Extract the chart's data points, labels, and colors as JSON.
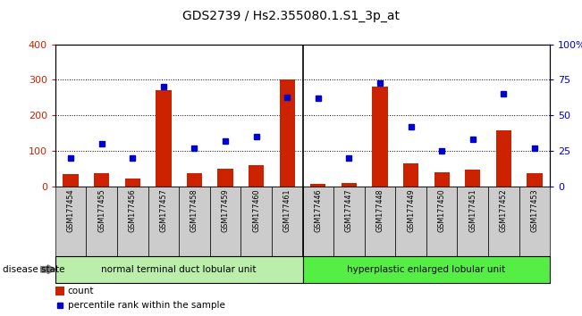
{
  "title": "GDS2739 / Hs2.355080.1.S1_3p_at",
  "samples": [
    "GSM177454",
    "GSM177455",
    "GSM177456",
    "GSM177457",
    "GSM177458",
    "GSM177459",
    "GSM177460",
    "GSM177461",
    "GSM177446",
    "GSM177447",
    "GSM177448",
    "GSM177449",
    "GSM177450",
    "GSM177451",
    "GSM177452",
    "GSM177453"
  ],
  "counts": [
    35,
    38,
    22,
    270,
    38,
    50,
    60,
    300,
    8,
    10,
    280,
    65,
    40,
    48,
    158,
    38
  ],
  "percentiles": [
    20,
    30,
    20,
    70,
    27,
    32,
    35,
    63,
    62,
    20,
    73,
    42,
    25,
    33,
    65,
    27
  ],
  "group1_label": "normal terminal duct lobular unit",
  "group2_label": "hyperplastic enlarged lobular unit",
  "group1_count": 8,
  "group2_count": 8,
  "bar_color": "#cc2200",
  "dot_color": "#0000cc",
  "group1_bg": "#bbeeaa",
  "group2_bg": "#55ee44",
  "tick_bg": "#cccccc",
  "ylim_left": [
    0,
    400
  ],
  "ylim_right": [
    0,
    100
  ],
  "yticks_left": [
    0,
    100,
    200,
    300,
    400
  ],
  "yticks_right": [
    0,
    25,
    50,
    75,
    100
  ],
  "yticklabels_right": [
    "0",
    "25",
    "50",
    "75",
    "100%"
  ],
  "legend_count_label": "count",
  "legend_pct_label": "percentile rank within the sample",
  "disease_state_label": "disease state",
  "title_fontsize": 10,
  "axis_fontsize": 8,
  "label_fontsize": 7.5
}
